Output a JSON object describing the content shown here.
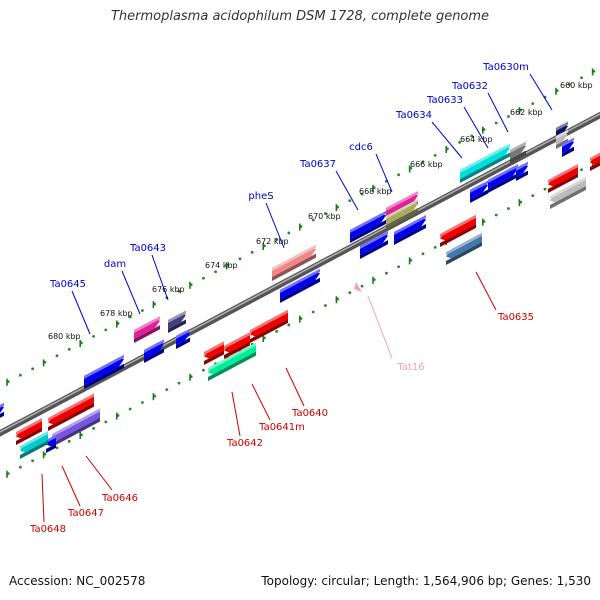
{
  "title": "Thermoplasma acidophilum DSM 1728, complete genome",
  "footer": {
    "accession": "Accession: NC_002578",
    "summary": "Topology: circular; Length: 1,564,906 bp; Genes: 1,530"
  },
  "kbp_ticks": [
    "660 kbp",
    "662 kbp",
    "664 kbp",
    "666 kbp",
    "668 kbp",
    "670 kbp",
    "672 kbp",
    "674 kbp",
    "676 kbp",
    "678 kbp",
    "680 kbp"
  ],
  "gene_labels": [
    {
      "name": "Ta0630m",
      "color": "#0000cc"
    },
    {
      "name": "Ta0632",
      "color": "#0000cc"
    },
    {
      "name": "Ta0633",
      "color": "#0000cc"
    },
    {
      "name": "Ta0634",
      "color": "#0000cc"
    },
    {
      "name": "cdc6",
      "color": "#0000cc"
    },
    {
      "name": "Ta0637",
      "color": "#0000cc"
    },
    {
      "name": "pheS",
      "color": "#0000cc"
    },
    {
      "name": "Ta0643",
      "color": "#0000cc"
    },
    {
      "name": "dam",
      "color": "#0000cc"
    },
    {
      "name": "Ta0645",
      "color": "#0000cc"
    },
    {
      "name": "Ta0635",
      "color": "#cc0000"
    },
    {
      "name": "Tat16",
      "color": "#f4a0c0"
    },
    {
      "name": "Ta0640",
      "color": "#cc0000"
    },
    {
      "name": "Ta0641m",
      "color": "#cc0000"
    },
    {
      "name": "Ta0642",
      "color": "#cc0000"
    },
    {
      "name": "Ta0646",
      "color": "#cc0000"
    },
    {
      "name": "Ta0647",
      "color": "#cc0000"
    },
    {
      "name": "Ta0648",
      "color": "#cc0000"
    }
  ],
  "colors": {
    "backbone": "#808080",
    "tick_dot": "#228b22",
    "tick_major": "#1a7a1a",
    "forward_label": "#0000cc",
    "reverse_label": "#cc0000"
  }
}
